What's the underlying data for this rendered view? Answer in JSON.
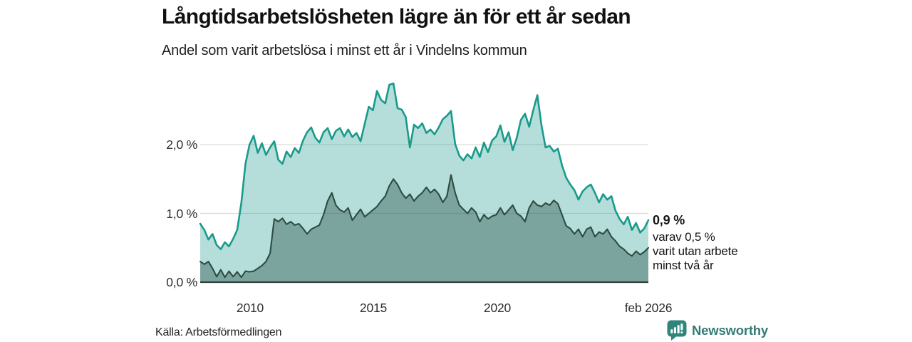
{
  "header": {
    "title": "Långtidsarbetslösheten lägre än för ett år sedan",
    "subtitle": "Andel som varit arbetslösa i minst ett år i Vindelns kommun"
  },
  "footer": {
    "source": "Källa: Arbetsförmedlingen",
    "brand": "Newsworthy"
  },
  "colors": {
    "accent_teal_line": "#1a9a8b",
    "light_area_fill": "rgba(24,153,139,0.32)",
    "dark_green_line": "#2c4c44",
    "dark_area_fill": "rgba(32,72,62,0.38)",
    "gridline": "#dcdcdc",
    "axis_line": "#343f3b",
    "brand_teal": "#2f857c",
    "text": "#111111"
  },
  "chart_data": {
    "type": "area",
    "title": "Långtidsarbetslösheten lägre än för ett år sedan",
    "subtitle": "Andel som varit arbetslösa i minst ett år i Vindelns kommun",
    "x_range": [
      2008.0,
      2026.083
    ],
    "ylim": [
      0,
      3.1
    ],
    "grid": "horizontal-only",
    "legend": "none",
    "y_gridlines": [
      1.0,
      2.0
    ],
    "yticks": [
      {
        "v": 0,
        "label": "0,0 %"
      },
      {
        "v": 1,
        "label": "1,0 %"
      },
      {
        "v": 2,
        "label": "2,0 %"
      }
    ],
    "xticks": [
      {
        "x": 2010,
        "label": "2010"
      },
      {
        "x": 2015,
        "label": "2015"
      },
      {
        "x": 2020,
        "label": "2020"
      },
      {
        "x": 2026.083,
        "label": "feb 2026"
      }
    ],
    "annotation": {
      "headline": "0,9 %",
      "line1": "varav 0,5 %",
      "line2": "varit utan arbete",
      "line3": "minst två år",
      "latest_total_pct": 0.9,
      "latest_two_year_pct": 0.5
    },
    "series": [
      {
        "id": "arbetslosa-minst-ett-ar",
        "role": "total-long-term-unemployment",
        "line_color": "#1a9a8b",
        "fill_color": "rgba(24,153,139,0.32)",
        "line_width": 2.6,
        "values": [
          0.85,
          0.76,
          0.62,
          0.7,
          0.54,
          0.48,
          0.58,
          0.52,
          0.63,
          0.76,
          1.15,
          1.72,
          2.0,
          2.13,
          1.88,
          2.02,
          1.85,
          1.96,
          2.05,
          1.78,
          1.72,
          1.9,
          1.82,
          1.95,
          1.88,
          2.06,
          2.18,
          2.25,
          2.1,
          2.03,
          2.18,
          2.24,
          2.08,
          2.2,
          2.24,
          2.12,
          2.22,
          2.11,
          2.17,
          2.05,
          2.3,
          2.55,
          2.5,
          2.78,
          2.65,
          2.6,
          2.87,
          2.89,
          2.53,
          2.51,
          2.4,
          1.96,
          2.29,
          2.24,
          2.31,
          2.17,
          2.22,
          2.15,
          2.25,
          2.37,
          2.42,
          2.49,
          2.01,
          1.84,
          1.77,
          1.86,
          1.8,
          1.96,
          1.82,
          2.03,
          1.89,
          2.06,
          2.12,
          2.28,
          2.04,
          2.18,
          1.92,
          2.1,
          2.36,
          2.45,
          2.26,
          2.5,
          2.72,
          2.28,
          1.96,
          1.98,
          1.9,
          1.94,
          1.7,
          1.52,
          1.42,
          1.34,
          1.2,
          1.32,
          1.38,
          1.42,
          1.3,
          1.16,
          1.28,
          1.2,
          1.25,
          1.04,
          0.92,
          0.84,
          0.95,
          0.76,
          0.86,
          0.72,
          0.78,
          0.9
        ]
      },
      {
        "id": "arbetslosa-minst-tva-ar",
        "role": "unemployed-at-least-two-years",
        "line_color": "#2c4c44",
        "fill_color": "rgba(32,72,62,0.38)",
        "line_width": 2.1,
        "values": [
          0.3,
          0.26,
          0.3,
          0.2,
          0.08,
          0.18,
          0.07,
          0.16,
          0.08,
          0.15,
          0.07,
          0.16,
          0.15,
          0.16,
          0.2,
          0.24,
          0.3,
          0.42,
          0.92,
          0.88,
          0.93,
          0.84,
          0.88,
          0.83,
          0.85,
          0.78,
          0.7,
          0.77,
          0.8,
          0.83,
          0.98,
          1.18,
          1.3,
          1.12,
          1.05,
          1.02,
          1.08,
          0.9,
          0.98,
          1.06,
          0.95,
          1.0,
          1.05,
          1.1,
          1.18,
          1.25,
          1.4,
          1.5,
          1.42,
          1.3,
          1.22,
          1.28,
          1.18,
          1.25,
          1.3,
          1.38,
          1.3,
          1.35,
          1.28,
          1.16,
          1.25,
          1.56,
          1.3,
          1.12,
          1.06,
          1.0,
          1.08,
          1.02,
          0.88,
          0.98,
          0.92,
          0.96,
          0.98,
          1.08,
          0.98,
          1.05,
          1.12,
          1.0,
          0.96,
          0.88,
          1.08,
          1.18,
          1.12,
          1.1,
          1.15,
          1.12,
          1.19,
          1.14,
          0.98,
          0.82,
          0.78,
          0.7,
          0.77,
          0.66,
          0.77,
          0.8,
          0.66,
          0.73,
          0.7,
          0.77,
          0.66,
          0.6,
          0.52,
          0.48,
          0.42,
          0.38,
          0.45,
          0.4,
          0.44,
          0.5
        ]
      }
    ]
  }
}
